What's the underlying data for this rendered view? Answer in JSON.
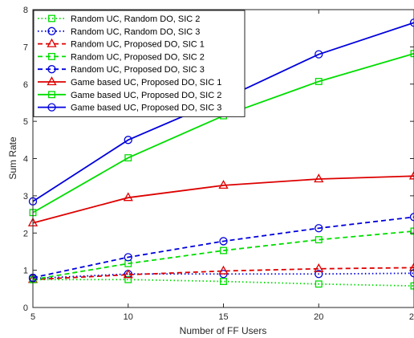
{
  "chart_data": {
    "type": "line",
    "title": "",
    "xlabel": "Number of FF Users",
    "ylabel": "Sum Rate",
    "x": [
      5,
      10,
      15,
      20,
      25
    ],
    "xlim": [
      5,
      25
    ],
    "ylim": [
      0,
      8
    ],
    "xticks": [
      "5",
      "10",
      "15",
      "20",
      "25"
    ],
    "yticks": [
      "0",
      "1",
      "2",
      "3",
      "4",
      "5",
      "6",
      "7",
      "8"
    ],
    "grid": false,
    "legend_position": "top-left",
    "series": [
      {
        "name": "Random UC, Random DO, SIC 2",
        "values": [
          0.75,
          0.75,
          0.7,
          0.63,
          0.58
        ],
        "color": "#00dd00",
        "line": "dotted",
        "marker": "square"
      },
      {
        "name": "Random UC, Random DO, SIC 3",
        "values": [
          0.78,
          0.9,
          0.9,
          0.9,
          0.92
        ],
        "color": "#0000dd",
        "line": "dotted",
        "marker": "circle"
      },
      {
        "name": "Random UC, Proposed DO, SIC 1",
        "values": [
          0.75,
          0.88,
          0.98,
          1.04,
          1.07
        ],
        "color": "#dd0000",
        "line": "dashed",
        "marker": "triangle"
      },
      {
        "name": "Random UC, Proposed DO, SIC 2",
        "values": [
          0.75,
          1.18,
          1.53,
          1.82,
          2.05
        ],
        "color": "#00dd00",
        "line": "dashed",
        "marker": "square"
      },
      {
        "name": "Random UC, Proposed DO, SIC 3",
        "values": [
          0.8,
          1.35,
          1.78,
          2.13,
          2.43
        ],
        "color": "#0000dd",
        "line": "dashed",
        "marker": "circle"
      },
      {
        "name": "Game based UC, Proposed DO, SIC 1",
        "values": [
          2.27,
          2.95,
          3.28,
          3.45,
          3.53
        ],
        "color": "#dd0000",
        "line": "solid",
        "marker": "triangle"
      },
      {
        "name": "Game based UC, Proposed DO, SIC 2",
        "values": [
          2.55,
          4.02,
          5.15,
          6.07,
          6.82
        ],
        "color": "#00dd00",
        "line": "solid",
        "marker": "square"
      },
      {
        "name": "Game based UC, Proposed DO, SIC 3",
        "values": [
          2.85,
          4.5,
          5.6,
          6.8,
          7.65
        ],
        "color": "#0000dd",
        "line": "solid",
        "marker": "circle"
      }
    ]
  }
}
